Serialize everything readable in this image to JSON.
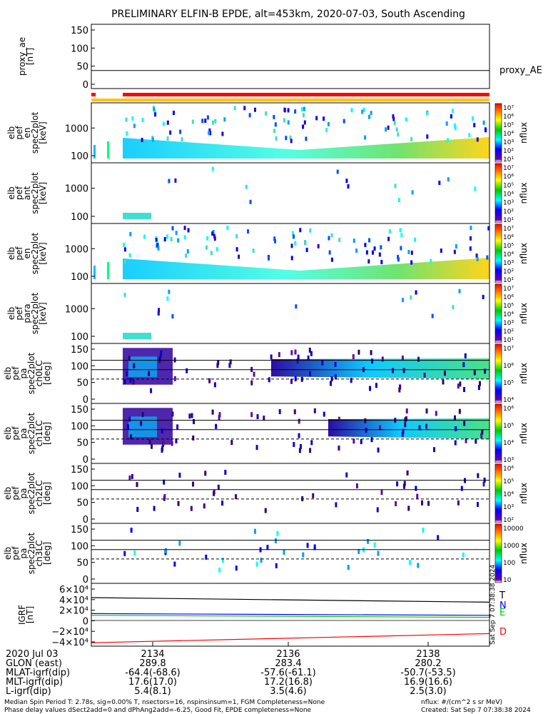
{
  "title": "PRELIMINARY ELFIN-B EPDE, alt=453km, 2020-07-03, South Ascending",
  "colors": {
    "flag_red": "#ff0000",
    "flag_yellow": "#ffc400",
    "grf_T": "#000000",
    "grf_N": "#0000ff",
    "grf_E": "#00c800",
    "grf_D": "#ff0000"
  },
  "panels": [
    {
      "ylabel": [
        "proxy_ae",
        "[nT]"
      ],
      "yticks": [
        "150",
        "100",
        "50",
        "0"
      ],
      "side_label": "proxy_AE"
    },
    {
      "ylabel": [
        "elb",
        "pef",
        "en",
        "spec2plot",
        "[keV]"
      ],
      "yticks": [
        "1000",
        "100"
      ],
      "cbar_label": "nflux"
    },
    {
      "ylabel": [
        "elb",
        "pef",
        "ant",
        "spec2plot",
        "[keV]"
      ],
      "yticks": [
        "1000",
        "100"
      ],
      "cbar_label": "nflux"
    },
    {
      "ylabel": [
        "elb",
        "pef",
        "en",
        "spec2plot",
        "[keV]"
      ],
      "yticks": [
        "1000",
        "100"
      ],
      "cbar_label": "nflux"
    },
    {
      "ylabel": [
        "elb",
        "pef",
        "para",
        "spec2plot",
        "[keV]"
      ],
      "yticks": [
        "1000",
        "100"
      ],
      "cbar_label": "nflux"
    },
    {
      "ylabel": [
        "elb",
        "pef",
        "pa",
        "spec2plot",
        "ch0LC",
        "[deg]"
      ],
      "yticks": [
        "150",
        "100",
        "50",
        "0"
      ],
      "cbar_label": "nflux"
    },
    {
      "ylabel": [
        "elb",
        "pef",
        "pa",
        "spec2plot",
        "ch1LC",
        "[deg]"
      ],
      "yticks": [
        "150",
        "100",
        "50",
        "0"
      ],
      "cbar_label": "nflux"
    },
    {
      "ylabel": [
        "elb",
        "pef",
        "pa",
        "spec2plot",
        "ch2LC",
        "[deg]"
      ],
      "yticks": [
        "150",
        "100",
        "50",
        "0"
      ],
      "cbar_label": "nflux"
    },
    {
      "ylabel": [
        "elb",
        "pef",
        "pa",
        "spec2plot",
        "ch3LC",
        "[deg]"
      ],
      "yticks": [
        "150",
        "100",
        "50",
        "0"
      ],
      "cbar_label": "nflux"
    },
    {
      "ylabel": [
        "IGRF",
        "[nT]"
      ],
      "yticks": [
        "6×10⁴",
        "4×10⁴",
        "2×10⁴",
        "0",
        "−2×10⁴",
        "−4×10⁴"
      ],
      "legend": [
        "T",
        "N",
        "E",
        "D"
      ],
      "stamp": "Sat Sep 7 07:38:38 2024"
    }
  ],
  "colorbars": [
    {
      "ticks": [
        "10⁷",
        "10⁶",
        "10⁵",
        "10⁴",
        "10³",
        "10²",
        "10¹"
      ]
    },
    {
      "ticks": [
        "10⁷",
        "10⁶",
        "10⁵",
        "10⁴",
        "10³",
        "10²",
        "10¹"
      ]
    },
    {
      "ticks": [
        "10⁷",
        "10⁶",
        "10⁵",
        "10⁴",
        "10³",
        "10²",
        "10¹"
      ]
    },
    {
      "ticks": [
        "10⁷",
        "10⁶",
        "10⁵",
        "10⁴",
        "10³",
        "10²",
        "10¹"
      ]
    },
    {
      "ticks": [
        "10⁷",
        "10⁶",
        "10⁵",
        "10⁴"
      ]
    },
    {
      "ticks": [
        "10⁶",
        "10⁵",
        "10⁴",
        "10³"
      ]
    },
    {
      "ticks": [
        "10⁶",
        "10⁵",
        "10⁴",
        "10³",
        "10²"
      ]
    },
    {
      "ticks": [
        "10000",
        "1000",
        "100",
        "10"
      ]
    }
  ],
  "time_axis": {
    "date_label": "2020 Jul 03",
    "ticks": [
      "2134",
      "2136",
      "2138"
    ],
    "rows": [
      {
        "name": "GLON (east)",
        "values": [
          "289.8",
          "283.4",
          "280.2"
        ]
      },
      {
        "name": "MLAT-igrf(dip)",
        "values": [
          "-64.4(-68.6)",
          "-57.6(-61.1)",
          "-50.7(-53.5)"
        ]
      },
      {
        "name": "MLT-igrf(dip)",
        "values": [
          "17.6(17.0)",
          "17.2(16.8)",
          "16.9(16.6)"
        ]
      },
      {
        "name": "L-igrf(dip)",
        "values": [
          "5.4(8.1)",
          "3.5(4.6)",
          "2.5(3.0)"
        ]
      }
    ]
  },
  "footer": {
    "line1": "Median Spin Period T: 2.78s, sig=0.00% T, nsectors=16, nspinsinsum=1, FGM Completeness=None",
    "line2": "Phase delay values dSect2add=0 and dPhAng2add=-6.25, Good Fit, EPDE completeness=None",
    "units": "nflux: #/(cm^2 s sr MeV)",
    "created": "Created: Sat Sep  7 07:38:38 2024"
  },
  "chart_data": {
    "type": "heatmap",
    "title": "PRELIMINARY ELFIN-B EPDE, alt=453km, 2020-07-03, South Ascending",
    "x_ticks": [
      "2134",
      "2136",
      "2138"
    ],
    "proxy_ae": {
      "ylim": [
        0,
        150
      ],
      "value_approx": 45
    },
    "energy_panels": {
      "yscale": "log",
      "yticks": [
        100,
        1000
      ]
    },
    "pitch_angle_panels": {
      "ylim": [
        0,
        150
      ],
      "reference_lines": [
        65,
        90,
        115
      ]
    },
    "igrf_nT": {
      "ylim": [
        -45000,
        65000
      ],
      "series": [
        {
          "name": "T",
          "start": 40000,
          "end": 32000
        },
        {
          "name": "N",
          "start": 12000,
          "end": 9000
        },
        {
          "name": "E",
          "start": 9000,
          "end": 5500
        },
        {
          "name": "D",
          "start": -39000,
          "end": -23000
        }
      ]
    }
  }
}
